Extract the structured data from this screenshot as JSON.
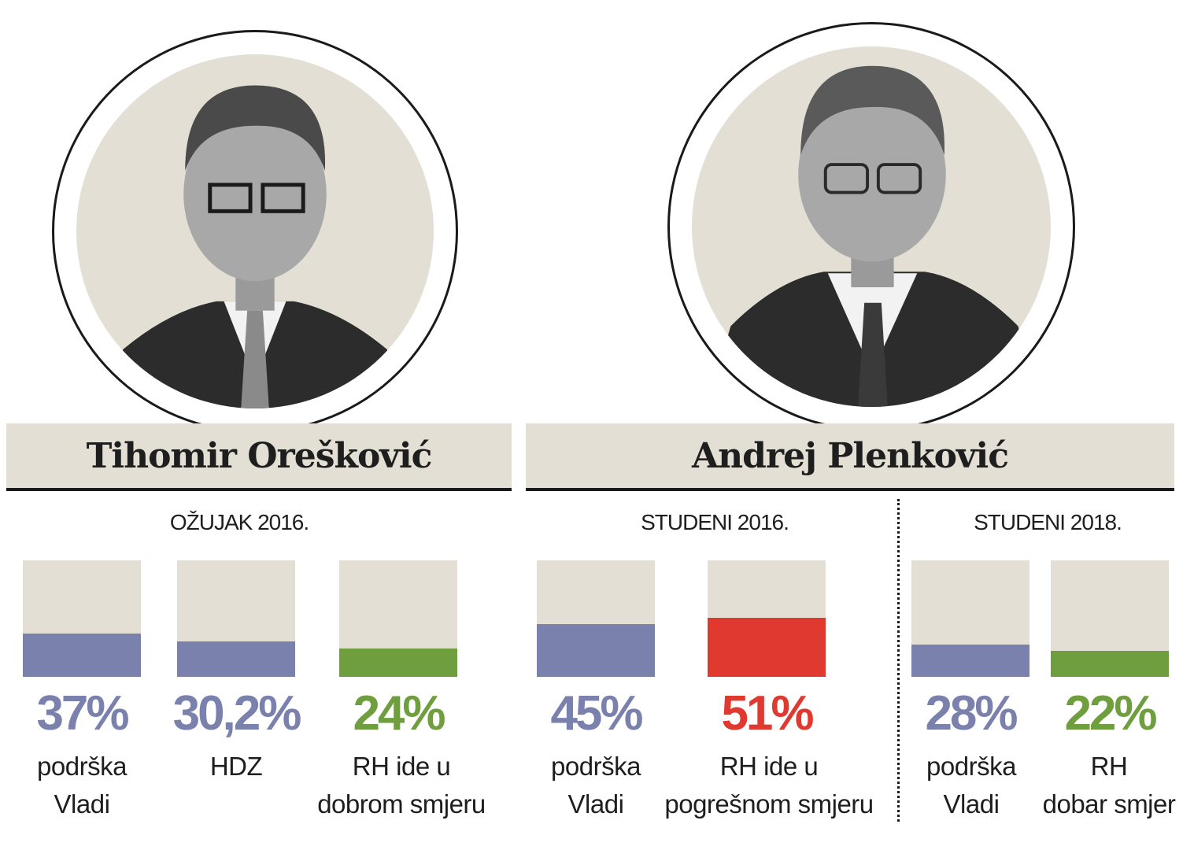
{
  "people": [
    {
      "name": "Tihomir Orešković",
      "portrait": "portrait-photo"
    },
    {
      "name": "Andrej Plenković",
      "portrait": "portrait-photo"
    }
  ],
  "colors": {
    "blue": "#7a81ad",
    "green": "#6f9e3f",
    "red": "#e0392f",
    "box": "#e3dfd5"
  },
  "chart_data": {
    "type": "bar",
    "ylim": [
      0,
      100
    ],
    "groups": [
      {
        "period": "OŽUJAK 2016.",
        "person": "Tihomir Orešković",
        "bars": [
          {
            "value": 37,
            "label_text": "37%",
            "caption": [
              "podrška",
              "Vladi"
            ],
            "color": "blue"
          },
          {
            "value": 30.2,
            "label_text": "30,2%",
            "caption": [
              "HDZ"
            ],
            "color": "blue"
          },
          {
            "value": 24,
            "label_text": "24%",
            "caption": [
              "RH ide u",
              "dobrom smjeru"
            ],
            "color": "green"
          }
        ]
      },
      {
        "period": "STUDENI 2016.",
        "person": "Andrej Plenković",
        "bars": [
          {
            "value": 45,
            "label_text": "45%",
            "caption": [
              "podrška",
              "Vladi"
            ],
            "color": "blue"
          },
          {
            "value": 51,
            "label_text": "51%",
            "caption": [
              "RH ide u",
              "pogrešnom smjeru"
            ],
            "color": "red"
          }
        ]
      },
      {
        "period": "STUDENI 2018.",
        "person": "Andrej Plenković",
        "bars": [
          {
            "value": 28,
            "label_text": "28%",
            "caption": [
              "podrška",
              "Vladi"
            ],
            "color": "blue"
          },
          {
            "value": 22,
            "label_text": "22%",
            "caption": [
              "RH",
              "dobar smjer"
            ],
            "color": "green"
          }
        ]
      }
    ]
  }
}
